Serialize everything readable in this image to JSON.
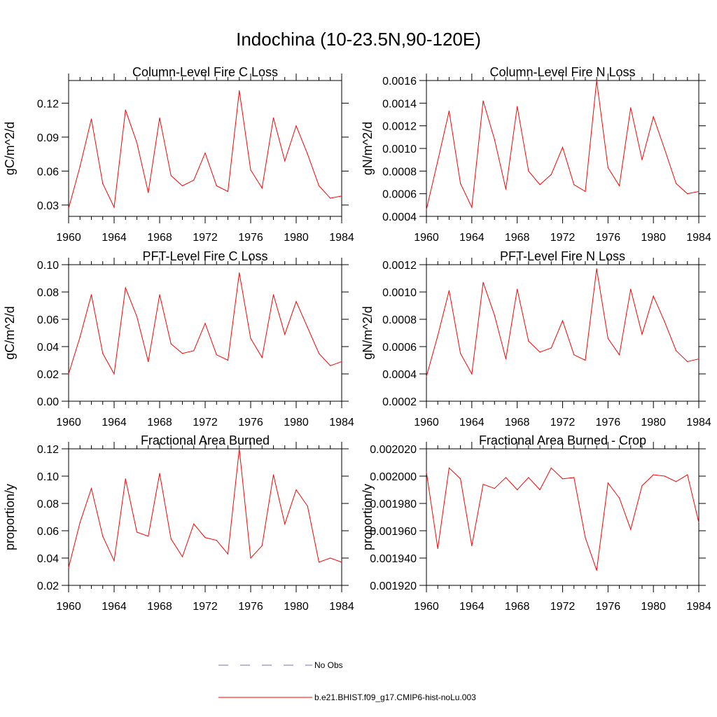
{
  "page": {
    "title": "Indochina (10-23.5N,90-120E)"
  },
  "legend": {
    "items": [
      {
        "label": "No Obs",
        "color": "#6f6fbf",
        "dashed": true
      },
      {
        "label": "b.e21.BHIST.f09_g17.CMIP6-hist-noLu.003",
        "color": "#ff0000",
        "dashed": false
      }
    ]
  },
  "chart_data": [
    {
      "type": "line",
      "title": "Column-Level Fire C Loss",
      "ylabel": "gC/m^2/d",
      "xlim": [
        1960,
        1984
      ],
      "ylim": [
        0.02,
        0.14
      ],
      "xticks": [
        1960,
        1964,
        1968,
        1972,
        1976,
        1980,
        1984
      ],
      "yticks": [
        0.03,
        0.06,
        0.09,
        0.12
      ],
      "ytick_labels": [
        "0.03",
        "0.06",
        "0.09",
        "0.12"
      ],
      "x": [
        1960,
        1961,
        1962,
        1963,
        1964,
        1965,
        1966,
        1967,
        1968,
        1969,
        1970,
        1971,
        1972,
        1973,
        1974,
        1975,
        1976,
        1977,
        1978,
        1979,
        1980,
        1981,
        1982,
        1983,
        1984
      ],
      "series": [
        {
          "color": "#ff0000",
          "values": [
            0.027,
            0.064,
            0.106,
            0.049,
            0.028,
            0.114,
            0.085,
            0.041,
            0.107,
            0.056,
            0.047,
            0.052,
            0.076,
            0.047,
            0.042,
            0.131,
            0.061,
            0.045,
            0.107,
            0.069,
            0.1,
            0.075,
            0.047,
            0.036,
            0.038
          ]
        }
      ]
    },
    {
      "type": "line",
      "title": "Column-Level Fire N Loss",
      "ylabel": "gN/m^2/d",
      "xlim": [
        1960,
        1984
      ],
      "ylim": [
        0.0004,
        0.0016
      ],
      "xticks": [
        1960,
        1964,
        1968,
        1972,
        1976,
        1980,
        1984
      ],
      "yticks": [
        0.0004,
        0.0006,
        0.0008,
        0.001,
        0.0012,
        0.0014,
        0.0016
      ],
      "ytick_labels": [
        "0.0004",
        "0.0006",
        "0.0008",
        "0.0010",
        "0.0012",
        "0.0014",
        "0.0016"
      ],
      "x": [
        1960,
        1961,
        1962,
        1963,
        1964,
        1965,
        1966,
        1967,
        1968,
        1969,
        1970,
        1971,
        1972,
        1973,
        1974,
        1975,
        1976,
        1977,
        1978,
        1979,
        1980,
        1981,
        1982,
        1983,
        1984
      ],
      "series": [
        {
          "color": "#ff0000",
          "values": [
            0.00046,
            0.00089,
            0.00133,
            0.00069,
            0.00048,
            0.00142,
            0.00108,
            0.00064,
            0.00137,
            0.0008,
            0.00068,
            0.00077,
            0.00101,
            0.00068,
            0.00062,
            0.0016,
            0.00083,
            0.00067,
            0.00136,
            0.0009,
            0.00128,
            0.00099,
            0.00069,
            0.0006,
            0.00062
          ]
        }
      ]
    },
    {
      "type": "line",
      "title": "PFT-Level Fire C Loss",
      "ylabel": "gC/m^2/d",
      "xlim": [
        1960,
        1984
      ],
      "ylim": [
        0.0,
        0.1
      ],
      "xticks": [
        1960,
        1964,
        1968,
        1972,
        1976,
        1980,
        1984
      ],
      "yticks": [
        0.0,
        0.02,
        0.04,
        0.06,
        0.08,
        0.1
      ],
      "ytick_labels": [
        "0.00",
        "0.02",
        "0.04",
        "0.06",
        "0.08",
        "0.10"
      ],
      "x": [
        1960,
        1961,
        1962,
        1963,
        1964,
        1965,
        1966,
        1967,
        1968,
        1969,
        1970,
        1971,
        1972,
        1973,
        1974,
        1975,
        1976,
        1977,
        1978,
        1979,
        1980,
        1981,
        1982,
        1983,
        1984
      ],
      "series": [
        {
          "color": "#ff0000",
          "values": [
            0.02,
            0.047,
            0.078,
            0.035,
            0.02,
            0.083,
            0.062,
            0.029,
            0.078,
            0.042,
            0.035,
            0.037,
            0.057,
            0.034,
            0.03,
            0.094,
            0.046,
            0.032,
            0.078,
            0.049,
            0.073,
            0.054,
            0.035,
            0.026,
            0.029
          ]
        }
      ]
    },
    {
      "type": "line",
      "title": "PFT-Level Fire N Loss",
      "ylabel": "gN/m^2/d",
      "xlim": [
        1960,
        1984
      ],
      "ylim": [
        0.0002,
        0.0012
      ],
      "xticks": [
        1960,
        1964,
        1968,
        1972,
        1976,
        1980,
        1984
      ],
      "yticks": [
        0.0002,
        0.0004,
        0.0006,
        0.0008,
        0.001,
        0.0012
      ],
      "ytick_labels": [
        "0.0002",
        "0.0004",
        "0.0006",
        "0.0008",
        "0.0010",
        "0.0012"
      ],
      "x": [
        1960,
        1961,
        1962,
        1963,
        1964,
        1965,
        1966,
        1967,
        1968,
        1969,
        1970,
        1971,
        1972,
        1973,
        1974,
        1975,
        1976,
        1977,
        1978,
        1979,
        1980,
        1981,
        1982,
        1983,
        1984
      ],
      "series": [
        {
          "color": "#ff0000",
          "values": [
            0.00038,
            0.00068,
            0.00101,
            0.00055,
            0.0004,
            0.00107,
            0.00083,
            0.00051,
            0.00102,
            0.00064,
            0.00056,
            0.00059,
            0.00079,
            0.00054,
            0.0005,
            0.00117,
            0.00066,
            0.00054,
            0.00102,
            0.00069,
            0.00097,
            0.00078,
            0.00057,
            0.00049,
            0.00051
          ]
        }
      ]
    },
    {
      "type": "line",
      "title": "Fractional Area Burned",
      "ylabel": "proportion/y",
      "xlim": [
        1960,
        1984
      ],
      "ylim": [
        0.02,
        0.12
      ],
      "xticks": [
        1960,
        1964,
        1968,
        1972,
        1976,
        1980,
        1984
      ],
      "yticks": [
        0.02,
        0.04,
        0.06,
        0.08,
        0.1,
        0.12
      ],
      "ytick_labels": [
        "0.02",
        "0.04",
        "0.06",
        "0.08",
        "0.10",
        "0.12"
      ],
      "x": [
        1960,
        1961,
        1962,
        1963,
        1964,
        1965,
        1966,
        1967,
        1968,
        1969,
        1970,
        1971,
        1972,
        1973,
        1974,
        1975,
        1976,
        1977,
        1978,
        1979,
        1980,
        1981,
        1982,
        1983,
        1984
      ],
      "series": [
        {
          "color": "#ff0000",
          "values": [
            0.033,
            0.066,
            0.091,
            0.056,
            0.038,
            0.098,
            0.059,
            0.056,
            0.102,
            0.054,
            0.041,
            0.065,
            0.055,
            0.053,
            0.043,
            0.12,
            0.04,
            0.049,
            0.101,
            0.065,
            0.09,
            0.078,
            0.037,
            0.04,
            0.037
          ]
        }
      ]
    },
    {
      "type": "line",
      "title": "Fractional Area Burned - Crop",
      "ylabel": "proportion/y",
      "xlim": [
        1960,
        1984
      ],
      "ylim": [
        0.00192,
        0.00202
      ],
      "xticks": [
        1960,
        1964,
        1968,
        1972,
        1976,
        1980,
        1984
      ],
      "yticks": [
        0.00192,
        0.00194,
        0.00196,
        0.00198,
        0.002,
        0.00202
      ],
      "ytick_labels": [
        "0.001920",
        "0.001940",
        "0.001960",
        "0.001980",
        "0.002000",
        "0.002020"
      ],
      "x": [
        1960,
        1961,
        1962,
        1963,
        1964,
        1965,
        1966,
        1967,
        1968,
        1969,
        1970,
        1971,
        1972,
        1973,
        1974,
        1975,
        1976,
        1977,
        1978,
        1979,
        1980,
        1981,
        1982,
        1983,
        1984
      ],
      "series": [
        {
          "color": "#ff0000",
          "values": [
            0.002003,
            0.001947,
            0.002006,
            0.001998,
            0.001949,
            0.001994,
            0.001991,
            0.001999,
            0.00199,
            0.001999,
            0.00199,
            0.002006,
            0.001998,
            0.001999,
            0.001955,
            0.001931,
            0.001995,
            0.001984,
            0.001961,
            0.001993,
            0.002001,
            0.002,
            0.001996,
            0.002001,
            0.001966
          ]
        }
      ]
    }
  ]
}
